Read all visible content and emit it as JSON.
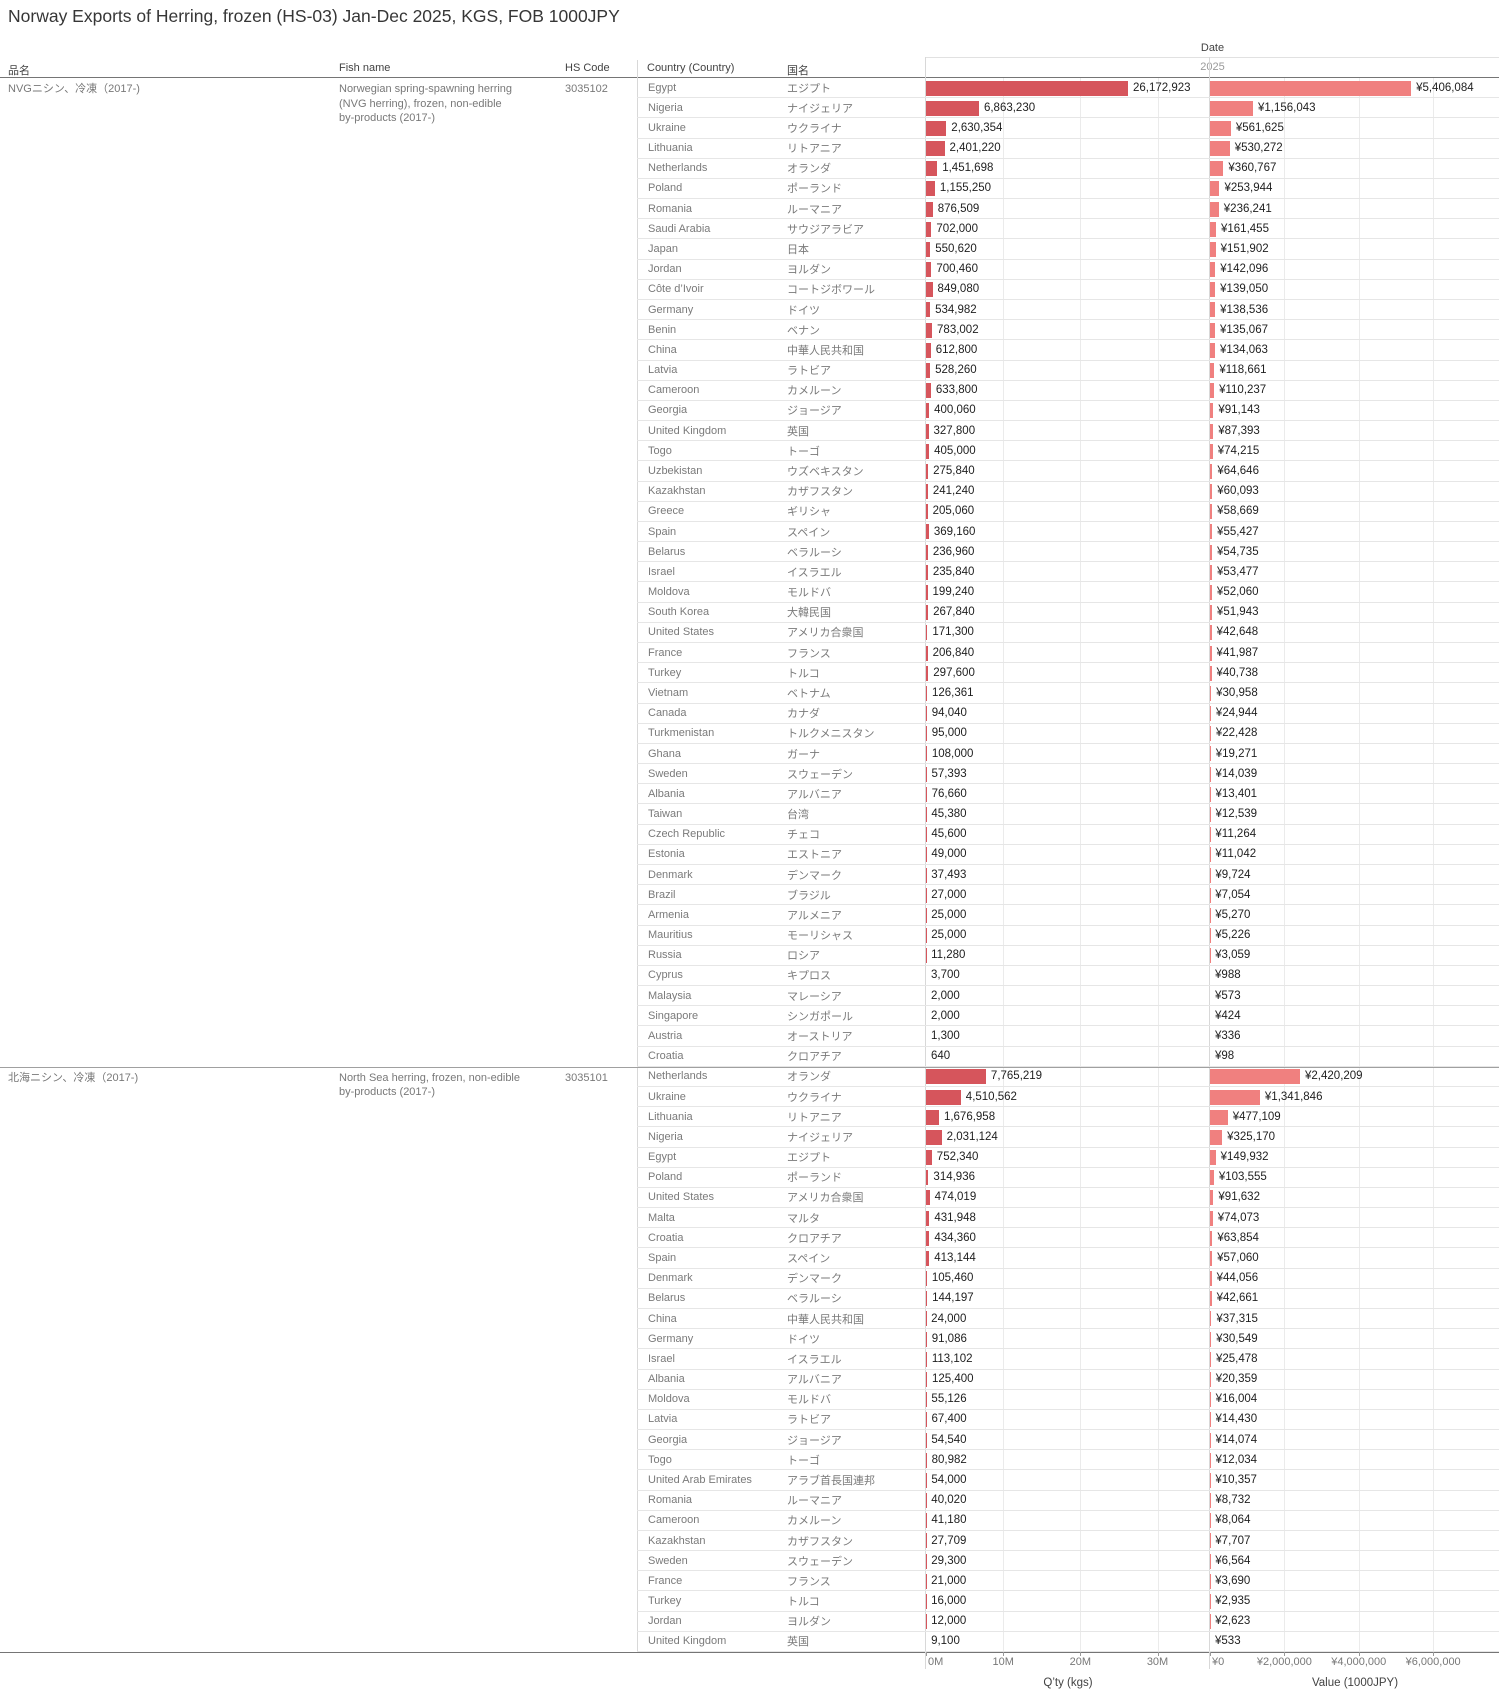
{
  "title": "Norway Exports of Herring, frozen (HS-03) Jan-Dec 2025, KGS, FOB 1000JPY",
  "columns": {
    "hinmei": "品名",
    "fish_name": "Fish name",
    "hs_code": "HS Code",
    "country": "Country (Country)",
    "kokumei": "国名"
  },
  "date_header": {
    "label": "Date",
    "year": "2025"
  },
  "colors": {
    "qty_bar": "#d6555c",
    "value_bar": "#f0807f"
  },
  "chart_data": {
    "type": "bar",
    "orientation": "horizontal",
    "title": "Norway Exports of Herring, frozen (HS-03) Jan-Dec 2025, KGS, FOB 1000JPY",
    "qty_axis": {
      "title": "Q’ty (kgs)",
      "ticks": [
        "0M",
        "10M",
        "20M",
        "30M"
      ],
      "tick_values": [
        0,
        10000000,
        20000000,
        30000000
      ],
      "max": 36800000
    },
    "value_axis": {
      "title": "Value (1000JPY)",
      "ticks": [
        "¥0",
        "¥2,000,000",
        "¥4,000,000",
        "¥6,000,000"
      ],
      "tick_values": [
        0,
        2000000,
        4000000,
        6000000
      ],
      "max": 7770000
    },
    "groups": [
      {
        "hinmei": "NVGニシン、冷凍（2017-)",
        "fish_name": "Norwegian spring-spawning herring\n(NVG herring), frozen, non-edible\nby-products (2017-)",
        "hs_code": "3035102",
        "rows": [
          {
            "country": "Egypt",
            "jp": "エジプト",
            "qty": 26172923,
            "value": 5406084
          },
          {
            "country": "Nigeria",
            "jp": "ナイジェリア",
            "qty": 6863230,
            "value": 1156043
          },
          {
            "country": "Ukraine",
            "jp": "ウクライナ",
            "qty": 2630354,
            "value": 561625
          },
          {
            "country": "Lithuania",
            "jp": "リトアニア",
            "qty": 2401220,
            "value": 530272
          },
          {
            "country": "Netherlands",
            "jp": "オランダ",
            "qty": 1451698,
            "value": 360767
          },
          {
            "country": "Poland",
            "jp": "ポーランド",
            "qty": 1155250,
            "value": 253944
          },
          {
            "country": "Romania",
            "jp": "ルーマニア",
            "qty": 876509,
            "value": 236241
          },
          {
            "country": "Saudi Arabia",
            "jp": "サウジアラビア",
            "qty": 702000,
            "value": 161455
          },
          {
            "country": "Japan",
            "jp": "日本",
            "qty": 550620,
            "value": 151902
          },
          {
            "country": "Jordan",
            "jp": "ヨルダン",
            "qty": 700460,
            "value": 142096
          },
          {
            "country": "Côte d’Ivoir",
            "jp": "コートジボワール",
            "qty": 849080,
            "value": 139050
          },
          {
            "country": "Germany",
            "jp": "ドイツ",
            "qty": 534982,
            "value": 138536
          },
          {
            "country": "Benin",
            "jp": "ベナン",
            "qty": 783002,
            "value": 135067
          },
          {
            "country": "China",
            "jp": "中華人民共和国",
            "qty": 612800,
            "value": 134063
          },
          {
            "country": "Latvia",
            "jp": "ラトビア",
            "qty": 528260,
            "value": 118661
          },
          {
            "country": "Cameroon",
            "jp": "カメルーン",
            "qty": 633800,
            "value": 110237
          },
          {
            "country": "Georgia",
            "jp": "ジョージア",
            "qty": 400060,
            "value": 91143
          },
          {
            "country": "United Kingdom",
            "jp": "英国",
            "qty": 327800,
            "value": 87393
          },
          {
            "country": "Togo",
            "jp": "トーゴ",
            "qty": 405000,
            "value": 74215
          },
          {
            "country": "Uzbekistan",
            "jp": "ウズベキスタン",
            "qty": 275840,
            "value": 64646
          },
          {
            "country": "Kazakhstan",
            "jp": "カザフスタン",
            "qty": 241240,
            "value": 60093
          },
          {
            "country": "Greece",
            "jp": "ギリシャ",
            "qty": 205060,
            "value": 58669
          },
          {
            "country": "Spain",
            "jp": "スペイン",
            "qty": 369160,
            "value": 55427
          },
          {
            "country": "Belarus",
            "jp": "ベラルーシ",
            "qty": 236960,
            "value": 54735
          },
          {
            "country": "Israel",
            "jp": "イスラエル",
            "qty": 235840,
            "value": 53477
          },
          {
            "country": "Moldova",
            "jp": "モルドバ",
            "qty": 199240,
            "value": 52060
          },
          {
            "country": "South Korea",
            "jp": "大韓民国",
            "qty": 267840,
            "value": 51943
          },
          {
            "country": "United States",
            "jp": "アメリカ合衆国",
            "qty": 171300,
            "value": 42648
          },
          {
            "country": "France",
            "jp": "フランス",
            "qty": 206840,
            "value": 41987
          },
          {
            "country": "Turkey",
            "jp": "トルコ",
            "qty": 297600,
            "value": 40738
          },
          {
            "country": "Vietnam",
            "jp": "ベトナム",
            "qty": 126361,
            "value": 30958
          },
          {
            "country": "Canada",
            "jp": "カナダ",
            "qty": 94040,
            "value": 24944
          },
          {
            "country": "Turkmenistan",
            "jp": "トルクメニスタン",
            "qty": 95000,
            "value": 22428
          },
          {
            "country": "Ghana",
            "jp": "ガーナ",
            "qty": 108000,
            "value": 19271
          },
          {
            "country": "Sweden",
            "jp": "スウェーデン",
            "qty": 57393,
            "value": 14039
          },
          {
            "country": "Albania",
            "jp": "アルバニア",
            "qty": 76660,
            "value": 13401
          },
          {
            "country": "Taiwan",
            "jp": "台湾",
            "qty": 45380,
            "value": 12539
          },
          {
            "country": "Czech Republic",
            "jp": "チェコ",
            "qty": 45600,
            "value": 11264
          },
          {
            "country": "Estonia",
            "jp": "エストニア",
            "qty": 49000,
            "value": 11042
          },
          {
            "country": "Denmark",
            "jp": "デンマーク",
            "qty": 37493,
            "value": 9724
          },
          {
            "country": "Brazil",
            "jp": "ブラジル",
            "qty": 27000,
            "value": 7054
          },
          {
            "country": "Armenia",
            "jp": "アルメニア",
            "qty": 25000,
            "value": 5270
          },
          {
            "country": "Mauritius",
            "jp": "モーリシャス",
            "qty": 25000,
            "value": 5226
          },
          {
            "country": "Russia",
            "jp": "ロシア",
            "qty": 11280,
            "value": 3059
          },
          {
            "country": "Cyprus",
            "jp": "キプロス",
            "qty": 3700,
            "value": 988
          },
          {
            "country": "Malaysia",
            "jp": "マレーシア",
            "qty": 2000,
            "value": 573
          },
          {
            "country": "Singapore",
            "jp": "シンガポール",
            "qty": 2000,
            "value": 424
          },
          {
            "country": "Austria",
            "jp": "オーストリア",
            "qty": 1300,
            "value": 336
          },
          {
            "country": "Croatia",
            "jp": "クロアチア",
            "qty": 640,
            "value": 98
          }
        ]
      },
      {
        "hinmei": "北海ニシン、冷凍（2017-)",
        "fish_name": "North Sea herring, frozen, non-edible\nby-products (2017-)",
        "hs_code": "3035101",
        "rows": [
          {
            "country": "Netherlands",
            "jp": "オランダ",
            "qty": 7765219,
            "value": 2420209
          },
          {
            "country": "Ukraine",
            "jp": "ウクライナ",
            "qty": 4510562,
            "value": 1341846
          },
          {
            "country": "Lithuania",
            "jp": "リトアニア",
            "qty": 1676958,
            "value": 477109
          },
          {
            "country": "Nigeria",
            "jp": "ナイジェリア",
            "qty": 2031124,
            "value": 325170
          },
          {
            "country": "Egypt",
            "jp": "エジプト",
            "qty": 752340,
            "value": 149932
          },
          {
            "country": "Poland",
            "jp": "ポーランド",
            "qty": 314936,
            "value": 103555
          },
          {
            "country": "United States",
            "jp": "アメリカ合衆国",
            "qty": 474019,
            "value": 91632
          },
          {
            "country": "Malta",
            "jp": "マルタ",
            "qty": 431948,
            "value": 74073
          },
          {
            "country": "Croatia",
            "jp": "クロアチア",
            "qty": 434360,
            "value": 63854
          },
          {
            "country": "Spain",
            "jp": "スペイン",
            "qty": 413144,
            "value": 57060
          },
          {
            "country": "Denmark",
            "jp": "デンマーク",
            "qty": 105460,
            "value": 44056
          },
          {
            "country": "Belarus",
            "jp": "ベラルーシ",
            "qty": 144197,
            "value": 42661
          },
          {
            "country": "China",
            "jp": "中華人民共和国",
            "qty": 24000,
            "value": 37315
          },
          {
            "country": "Germany",
            "jp": "ドイツ",
            "qty": 91086,
            "value": 30549
          },
          {
            "country": "Israel",
            "jp": "イスラエル",
            "qty": 113102,
            "value": 25478
          },
          {
            "country": "Albania",
            "jp": "アルバニア",
            "qty": 125400,
            "value": 20359
          },
          {
            "country": "Moldova",
            "jp": "モルドバ",
            "qty": 55126,
            "value": 16004
          },
          {
            "country": "Latvia",
            "jp": "ラトビア",
            "qty": 67400,
            "value": 14430
          },
          {
            "country": "Georgia",
            "jp": "ジョージア",
            "qty": 54540,
            "value": 14074
          },
          {
            "country": "Togo",
            "jp": "トーゴ",
            "qty": 80982,
            "value": 12034
          },
          {
            "country": "United Arab Emirates",
            "jp": "アラブ首長国連邦",
            "qty": 54000,
            "value": 10357
          },
          {
            "country": "Romania",
            "jp": "ルーマニア",
            "qty": 40020,
            "value": 8732
          },
          {
            "country": "Cameroon",
            "jp": "カメルーン",
            "qty": 41180,
            "value": 8064
          },
          {
            "country": "Kazakhstan",
            "jp": "カザフスタン",
            "qty": 27709,
            "value": 7707
          },
          {
            "country": "Sweden",
            "jp": "スウェーデン",
            "qty": 29300,
            "value": 6564
          },
          {
            "country": "France",
            "jp": "フランス",
            "qty": 21000,
            "value": 3690
          },
          {
            "country": "Turkey",
            "jp": "トルコ",
            "qty": 16000,
            "value": 2935
          },
          {
            "country": "Jordan",
            "jp": "ヨルダン",
            "qty": 12000,
            "value": 2623
          },
          {
            "country": "United Kingdom",
            "jp": "英国",
            "qty": 9100,
            "value": 533
          }
        ]
      }
    ]
  }
}
